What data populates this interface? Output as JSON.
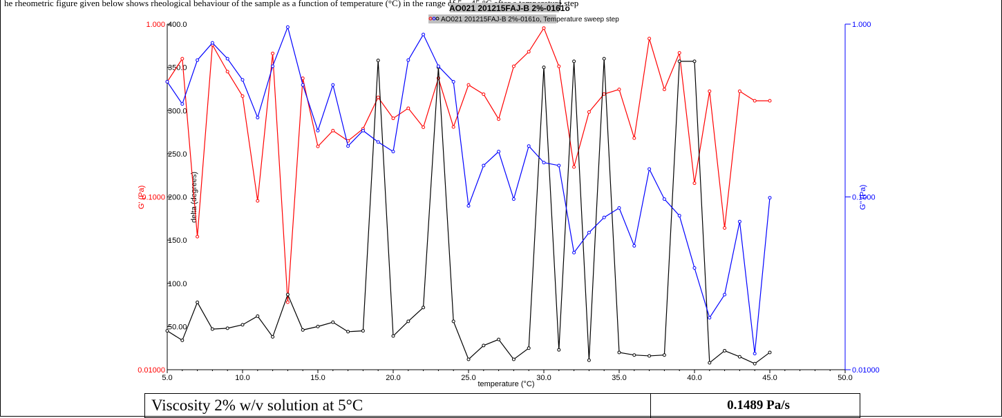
{
  "intro_text": "he rheometric figure given below shows rheological behaviour of the sample as a function of temperature (°C) in the range of 5 – 45 °C after a temperature step",
  "chart_data": {
    "type": "line",
    "title": "AO021 201215FAJ-B 2%-0161o",
    "legend": "AO021 201215FAJ-B 2%-0161o, Temperature sweep step",
    "legend_position": "top-center",
    "xlabel": "temperature (°C)",
    "x_range": [
      5,
      50
    ],
    "x_ticks": [
      "5.0",
      "10.0",
      "15.0",
      "20.0",
      "25.0",
      "30.0",
      "35.0",
      "40.0",
      "45.0",
      "50.0"
    ],
    "left_axis_G": {
      "label": "G' (Pa)",
      "scale": "log",
      "range": [
        0.01,
        1.0
      ],
      "tick_labels": [
        "1.000",
        "0.1000",
        "0.01000"
      ],
      "color": "#ff0000"
    },
    "delta_axis": {
      "label": "delta (degrees)",
      "scale": "linear",
      "range": [
        0,
        400
      ],
      "tick_labels": [
        "400.0",
        "350.0",
        "300.0",
        "250.0",
        "200.0",
        "150.0",
        "100.0",
        "50.00",
        "0"
      ],
      "color": "#000000"
    },
    "right_axis_G2": {
      "label": "G'' (Pa)",
      "scale": "log",
      "range": [
        0.01,
        1.0
      ],
      "tick_labels": [
        "1.000",
        "0.1000",
        "0.01000"
      ],
      "color": "#0000ff"
    },
    "grid": false,
    "x": [
      5,
      6,
      7,
      8,
      9,
      10,
      11,
      12,
      13,
      14,
      15,
      16,
      17,
      18,
      19,
      20,
      21,
      22,
      23,
      24,
      25,
      26,
      27,
      28,
      29,
      30,
      31,
      32,
      33,
      34,
      35,
      36,
      37,
      38,
      39,
      40,
      41,
      42,
      43,
      44,
      45
    ],
    "series": [
      {
        "name": "G'",
        "axis": "left_log",
        "color": "#ff0000",
        "values": [
          0.464,
          0.631,
          0.0589,
          0.759,
          0.531,
          0.383,
          0.0949,
          0.677,
          0.0246,
          0.486,
          0.196,
          0.242,
          0.211,
          0.248,
          0.377,
          0.285,
          0.326,
          0.253,
          0.487,
          0.254,
          0.445,
          0.393,
          0.282,
          0.57,
          0.692,
          0.949,
          0.57,
          0.149,
          0.31,
          0.394,
          0.419,
          0.219,
          0.825,
          0.419,
          0.682,
          0.12,
          0.409,
          0.0661,
          0.409,
          0.36,
          0.36
        ]
      },
      {
        "name": "delta",
        "axis": "delta_linear",
        "color": "#000000",
        "values": [
          45,
          34,
          78,
          47,
          48,
          52,
          62,
          38,
          87,
          46,
          50,
          55,
          44,
          45,
          358,
          39,
          56,
          72,
          350,
          56,
          12,
          28,
          35,
          12,
          25,
          350,
          23,
          357,
          11,
          360,
          20,
          17,
          16,
          17,
          357,
          357,
          8,
          22,
          15,
          7,
          20
        ]
      },
      {
        "name": "G''",
        "axis": "right_log",
        "color": "#0000ff",
        "values": [
          0.464,
          0.345,
          0.619,
          0.779,
          0.631,
          0.476,
          0.288,
          0.571,
          0.962,
          0.445,
          0.242,
          0.445,
          0.197,
          0.242,
          0.208,
          0.183,
          0.619,
          0.871,
          0.571,
          0.464,
          0.0888,
          0.152,
          0.183,
          0.0972,
          0.197,
          0.158,
          0.152,
          0.0476,
          0.0622,
          0.0761,
          0.0863,
          0.0521,
          0.145,
          0.0972,
          0.0779,
          0.0388,
          0.02,
          0.0272,
          0.072,
          0.0124,
          0.0989
        ]
      }
    ]
  },
  "table": {
    "label": "Viscosity 2% w/v solution at 5°C",
    "value": "0.1489 Pa/s"
  }
}
